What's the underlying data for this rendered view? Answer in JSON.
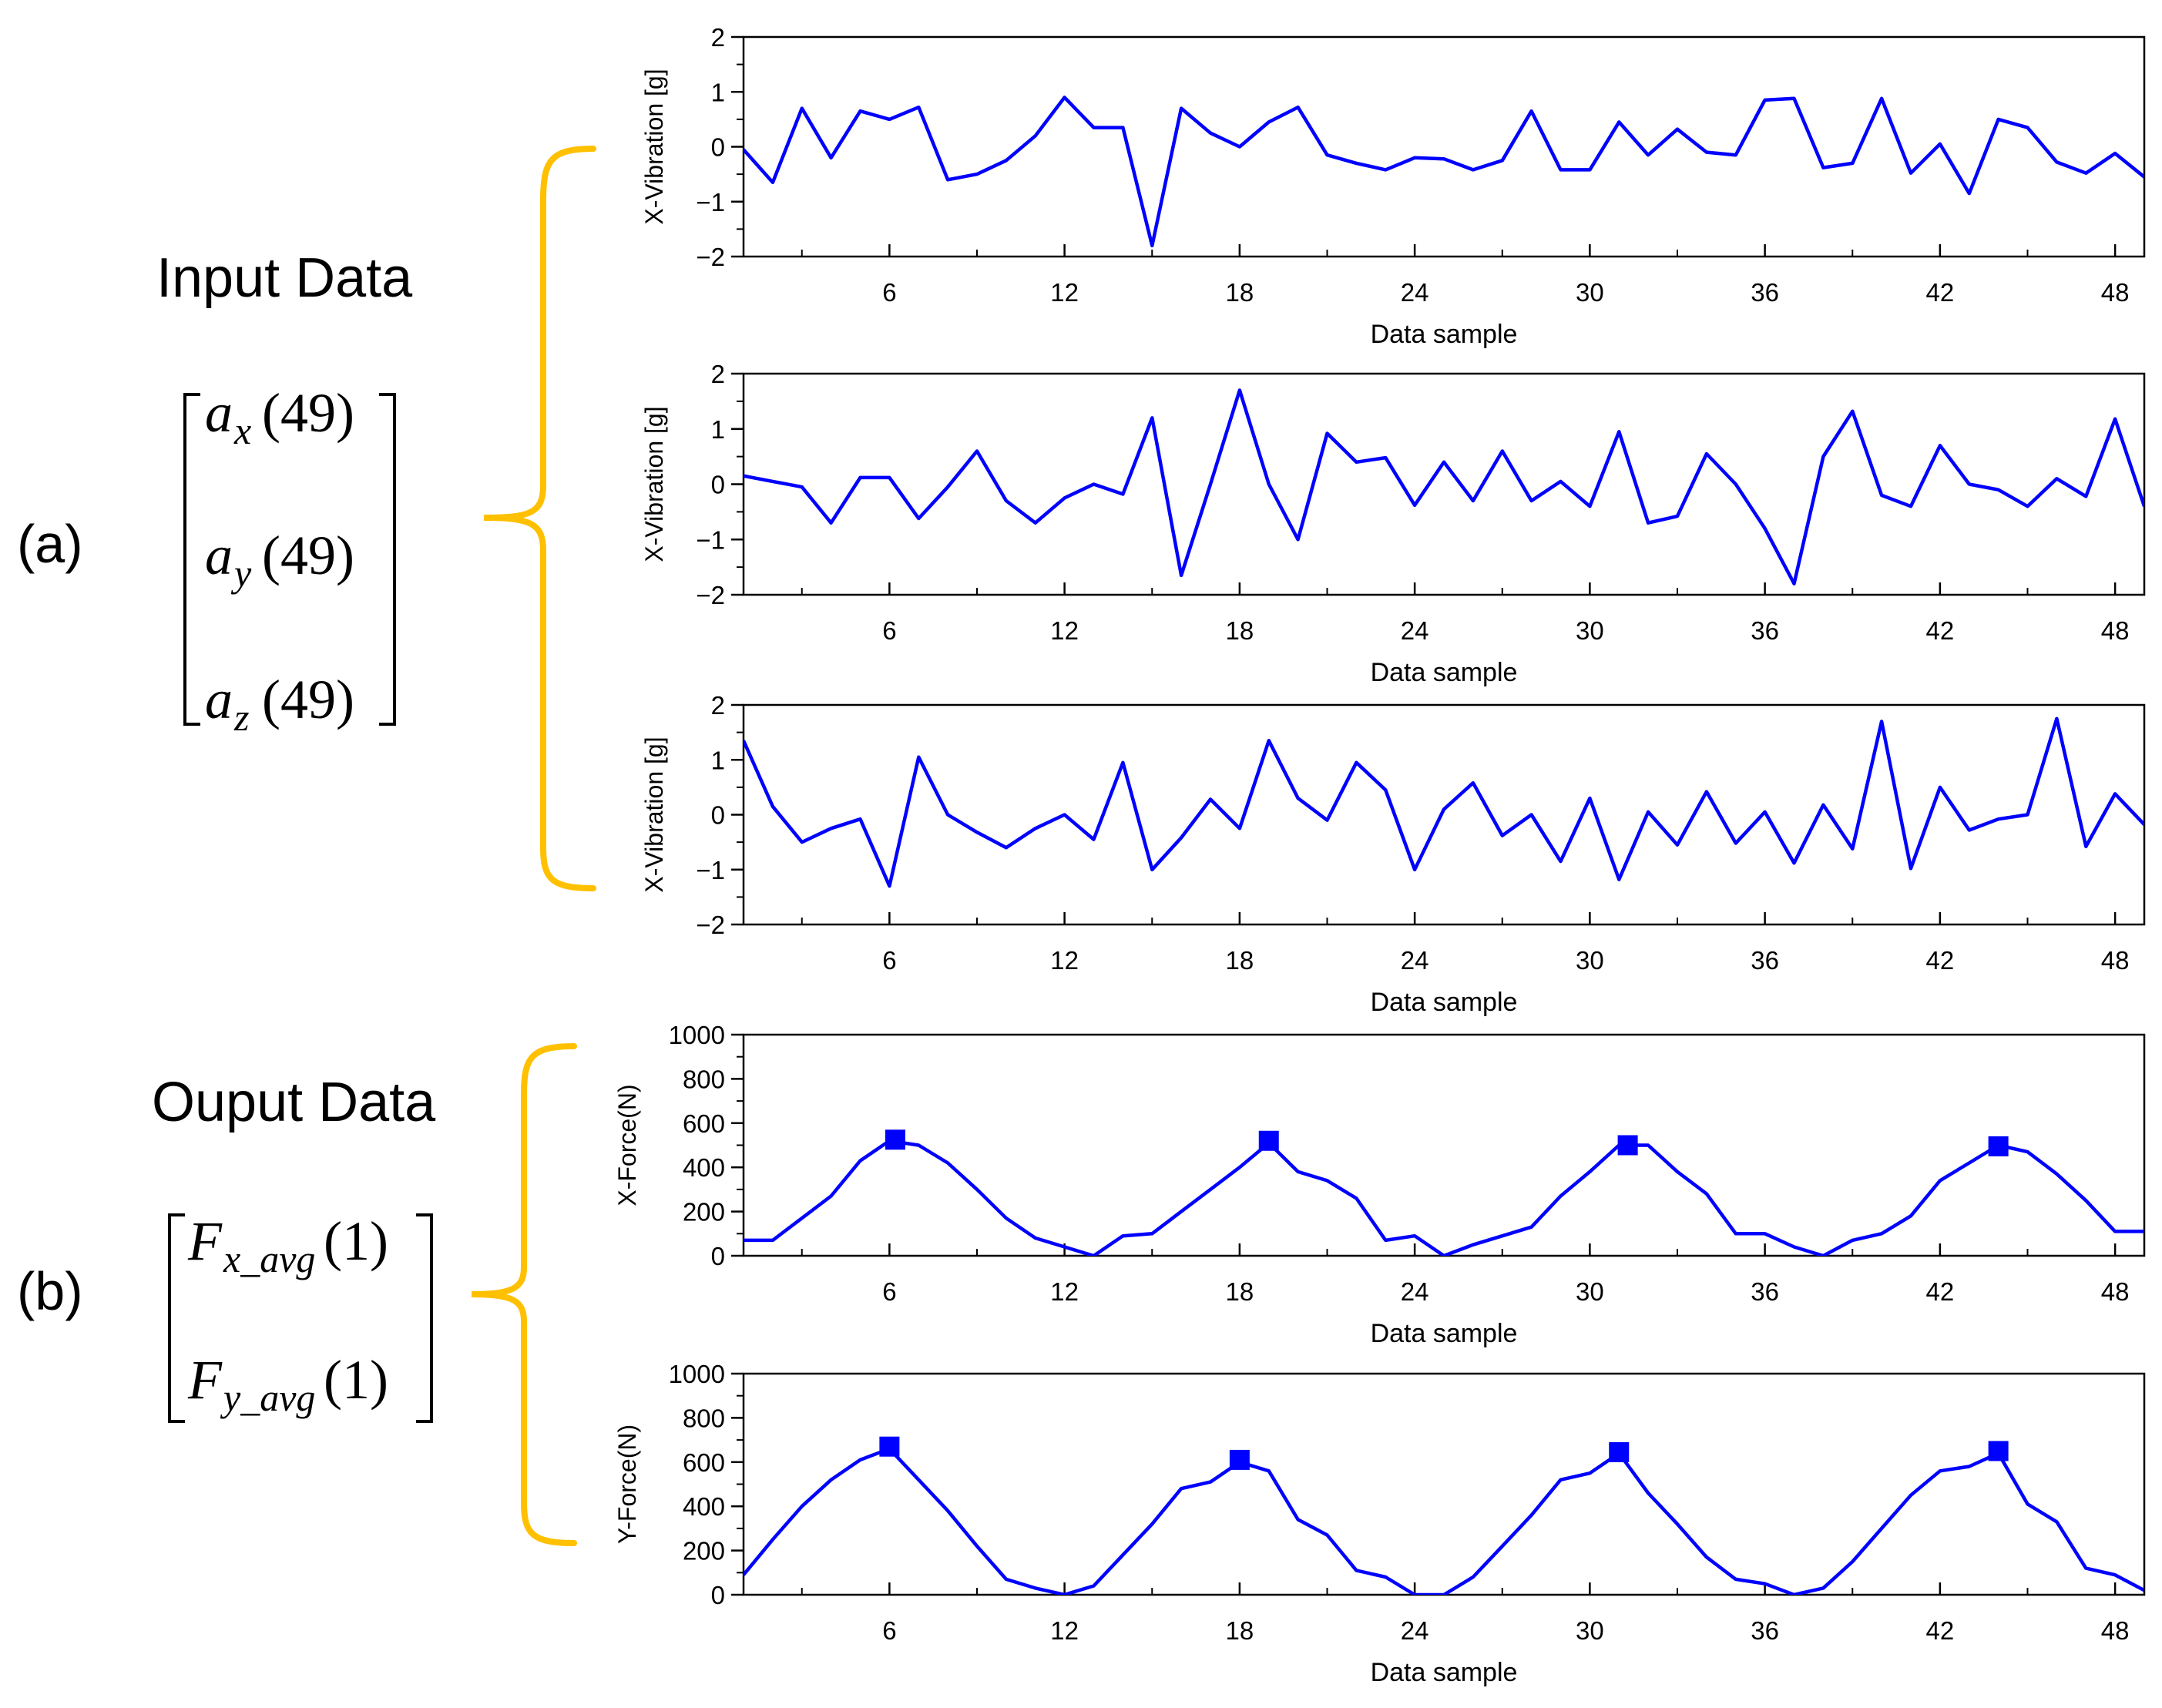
{
  "sections": {
    "a": {
      "tag": "(a)",
      "heading": "Input Data",
      "vector": [
        {
          "base": "a",
          "sub": "x",
          "arg": "(49)"
        },
        {
          "base": "a",
          "sub": "y",
          "arg": "(49)"
        },
        {
          "base": "a",
          "sub": "z",
          "arg": "(49)"
        }
      ]
    },
    "b": {
      "tag": "(b)",
      "heading": "Ouput Data",
      "vector": [
        {
          "base": "F",
          "sub": "x_avg",
          "arg": "(1)"
        },
        {
          "base": "F",
          "sub": "y_avg",
          "arg": "(1)"
        }
      ]
    }
  },
  "colors": {
    "line": "#0000ff",
    "brace": "#ffc000",
    "axis": "#000000"
  },
  "chart_data": [
    {
      "type": "line",
      "id": "x-vibration-1",
      "ylabel": "X-Vibration [g]",
      "xlabel": "Data sample",
      "xlim": [
        1,
        49
      ],
      "ylim": [
        -2,
        2
      ],
      "xticks": [
        6,
        12,
        18,
        24,
        30,
        36,
        42,
        48
      ],
      "yticks": [
        -2,
        -1,
        0,
        1,
        2
      ],
      "x": [
        1,
        2,
        3,
        4,
        5,
        6,
        7,
        8,
        9,
        10,
        11,
        12,
        13,
        14,
        15,
        16,
        17,
        18,
        19,
        20,
        21,
        22,
        23,
        24,
        25,
        26,
        27,
        28,
        29,
        30,
        31,
        32,
        33,
        34,
        35,
        36,
        37,
        38,
        39,
        40,
        41,
        42,
        43,
        44,
        45,
        46,
        47,
        48,
        49
      ],
      "y": [
        -0.05,
        -0.65,
        0.7,
        -0.2,
        0.65,
        0.5,
        0.72,
        -0.6,
        -0.5,
        -0.25,
        0.2,
        0.9,
        0.35,
        0.35,
        -1.8,
        0.7,
        0.25,
        0.0,
        0.45,
        0.72,
        -0.15,
        -0.3,
        -0.42,
        -0.2,
        -0.22,
        -0.42,
        -0.25,
        0.65,
        -0.42,
        -0.42,
        0.45,
        -0.15,
        0.32,
        -0.1,
        -0.15,
        0.85,
        0.88,
        -0.38,
        -0.3,
        0.88,
        -0.48,
        0.05,
        -0.85,
        0.5,
        0.35,
        -0.28,
        -0.48,
        -0.12,
        -0.55
      ],
      "markers": []
    },
    {
      "type": "line",
      "id": "x-vibration-2",
      "ylabel": "X-Vibration [g]",
      "xlabel": "Data sample",
      "xlim": [
        1,
        49
      ],
      "ylim": [
        -2,
        2
      ],
      "xticks": [
        6,
        12,
        18,
        24,
        30,
        36,
        42,
        48
      ],
      "yticks": [
        -2,
        -1,
        0,
        1,
        2
      ],
      "x": [
        1,
        2,
        3,
        4,
        5,
        6,
        7,
        8,
        9,
        10,
        11,
        12,
        13,
        14,
        15,
        16,
        17,
        18,
        19,
        20,
        21,
        22,
        23,
        24,
        25,
        26,
        27,
        28,
        29,
        30,
        31,
        32,
        33,
        34,
        35,
        36,
        37,
        38,
        39,
        40,
        41,
        42,
        43,
        44,
        45,
        46,
        47,
        48,
        49
      ],
      "y": [
        0.15,
        0.05,
        -0.05,
        -0.7,
        0.12,
        0.12,
        -0.62,
        -0.05,
        0.6,
        -0.3,
        -0.7,
        -0.25,
        0.0,
        -0.18,
        1.2,
        -1.65,
        0.0,
        1.7,
        0.0,
        -1.0,
        0.92,
        0.4,
        0.48,
        -0.38,
        0.4,
        -0.3,
        0.6,
        -0.3,
        0.05,
        -0.4,
        0.95,
        -0.7,
        -0.58,
        0.55,
        0.0,
        -0.8,
        -1.8,
        0.5,
        1.32,
        -0.2,
        -0.4,
        0.7,
        0.0,
        -0.1,
        -0.4,
        0.1,
        -0.22,
        1.18,
        -0.4
      ],
      "markers": []
    },
    {
      "type": "line",
      "id": "x-vibration-3",
      "ylabel": "X-Vibration [g]",
      "xlabel": "Data sample",
      "xlim": [
        1,
        49
      ],
      "ylim": [
        -2,
        2
      ],
      "xticks": [
        6,
        12,
        18,
        24,
        30,
        36,
        42,
        48
      ],
      "yticks": [
        -2,
        -1,
        0,
        1,
        2
      ],
      "x": [
        1,
        2,
        3,
        4,
        5,
        6,
        7,
        8,
        9,
        10,
        11,
        12,
        13,
        14,
        15,
        16,
        17,
        18,
        19,
        20,
        21,
        22,
        23,
        24,
        25,
        26,
        27,
        28,
        29,
        30,
        31,
        32,
        33,
        34,
        35,
        36,
        37,
        38,
        39,
        40,
        41,
        42,
        43,
        44,
        45,
        46,
        47,
        48,
        49
      ],
      "y": [
        1.35,
        0.15,
        -0.5,
        -0.25,
        -0.08,
        -1.3,
        1.05,
        0.0,
        -0.32,
        -0.6,
        -0.25,
        0.0,
        -0.45,
        0.95,
        -1.0,
        -0.42,
        0.28,
        -0.25,
        1.35,
        0.3,
        -0.1,
        0.95,
        0.45,
        -1.0,
        0.1,
        0.58,
        -0.38,
        0.0,
        -0.85,
        0.3,
        -1.18,
        0.05,
        -0.55,
        0.42,
        -0.52,
        0.05,
        -0.88,
        0.18,
        -0.62,
        1.7,
        -0.98,
        0.5,
        -0.28,
        -0.08,
        0.0,
        1.75,
        -0.58,
        0.38,
        -0.18
      ],
      "markers": []
    },
    {
      "type": "line",
      "id": "x-force",
      "ylabel": "X-Force(N)",
      "xlabel": "Data sample",
      "xlim": [
        1,
        49
      ],
      "ylim": [
        0,
        1000
      ],
      "xticks": [
        6,
        12,
        18,
        24,
        30,
        36,
        42,
        48
      ],
      "yticks": [
        0,
        200,
        400,
        600,
        800,
        1000
      ],
      "x": [
        1,
        2,
        3,
        4,
        5,
        6,
        7,
        8,
        9,
        10,
        11,
        12,
        13,
        14,
        15,
        16,
        17,
        18,
        19,
        20,
        21,
        22,
        23,
        24,
        25,
        26,
        27,
        28,
        29,
        30,
        31,
        32,
        33,
        34,
        35,
        36,
        37,
        38,
        39,
        40,
        41,
        42,
        43,
        44,
        45,
        46,
        47,
        48,
        49
      ],
      "y": [
        70,
        70,
        170,
        270,
        430,
        520,
        500,
        420,
        300,
        170,
        80,
        40,
        0,
        90,
        100,
        200,
        300,
        400,
        510,
        380,
        340,
        260,
        70,
        90,
        0,
        50,
        90,
        130,
        270,
        380,
        500,
        500,
        380,
        280,
        100,
        100,
        40,
        0,
        70,
        100,
        180,
        340,
        420,
        500,
        470,
        370,
        250,
        110,
        110
      ],
      "markers": [
        {
          "x": 6.2,
          "y": 525
        },
        {
          "x": 19,
          "y": 520
        },
        {
          "x": 31.3,
          "y": 500
        },
        {
          "x": 44,
          "y": 495
        }
      ]
    },
    {
      "type": "line",
      "id": "y-force",
      "ylabel": "Y-Force(N)",
      "xlabel": "Data sample",
      "xlim": [
        1,
        49
      ],
      "ylim": [
        0,
        1000
      ],
      "xticks": [
        6,
        12,
        18,
        24,
        30,
        36,
        42,
        48
      ],
      "yticks": [
        0,
        200,
        400,
        600,
        800,
        1000
      ],
      "x": [
        1,
        2,
        3,
        4,
        5,
        6,
        7,
        8,
        9,
        10,
        11,
        12,
        13,
        14,
        15,
        16,
        17,
        18,
        19,
        20,
        21,
        22,
        23,
        24,
        25,
        26,
        27,
        28,
        29,
        30,
        31,
        32,
        33,
        34,
        35,
        36,
        37,
        38,
        39,
        40,
        41,
        42,
        43,
        44,
        45,
        46,
        47,
        48,
        49
      ],
      "y": [
        90,
        250,
        400,
        520,
        610,
        660,
        520,
        380,
        220,
        70,
        30,
        0,
        40,
        180,
        320,
        480,
        510,
        600,
        560,
        340,
        270,
        110,
        80,
        0,
        0,
        80,
        220,
        360,
        520,
        550,
        640,
        460,
        320,
        170,
        70,
        50,
        0,
        30,
        150,
        300,
        450,
        560,
        580,
        640,
        410,
        330,
        120,
        90,
        20
      ],
      "markers": [
        {
          "x": 6,
          "y": 670
        },
        {
          "x": 18,
          "y": 610
        },
        {
          "x": 31,
          "y": 645
        },
        {
          "x": 44,
          "y": 650
        }
      ]
    }
  ]
}
